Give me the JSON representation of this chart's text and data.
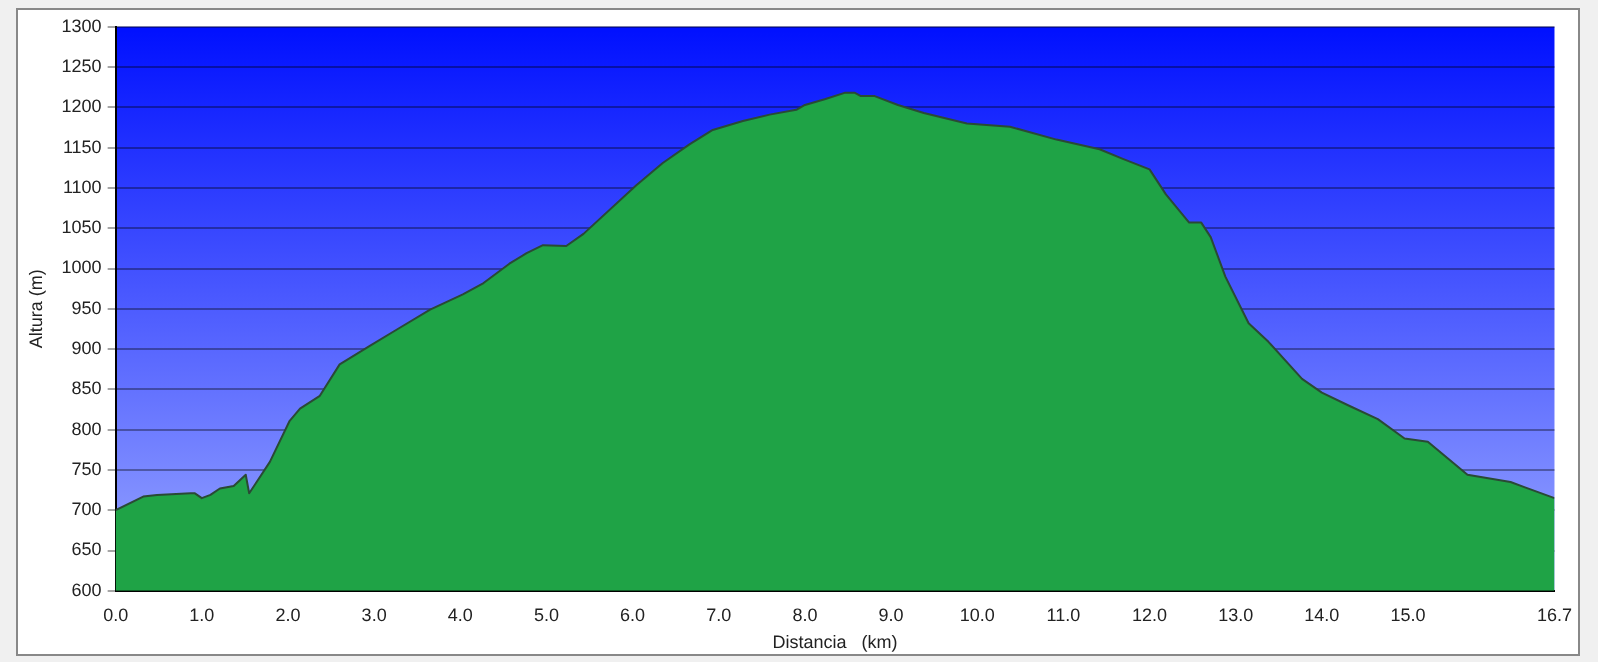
{
  "chart_data": {
    "type": "area",
    "xlabel": "Distancia   (km)",
    "ylabel": "Altura (m)",
    "x": [
      0,
      0.32,
      0.48,
      0.87,
      0.92,
      1.0,
      1.1,
      1.21,
      1.37,
      1.51,
      1.55,
      1.79,
      2.02,
      2.14,
      2.37,
      2.6,
      2.95,
      3.26,
      3.65,
      4.03,
      4.27,
      4.57,
      4.77,
      4.96,
      5.23,
      5.43,
      6.04,
      6.35,
      6.66,
      6.93,
      7.28,
      7.59,
      7.9,
      8.0,
      8.23,
      8.46,
      8.58,
      8.65,
      8.81,
      9.08,
      9.38,
      9.88,
      10.38,
      10.92,
      11.42,
      11.69,
      12.0,
      12.19,
      12.46,
      12.6,
      12.71,
      12.88,
      13.15,
      13.38,
      13.77,
      14.0,
      14.31,
      14.65,
      14.96,
      15.23,
      15.69,
      16.19,
      16.7
    ],
    "series": [
      {
        "color": "#1fa346",
        "values": [
          700,
          717,
          719,
          721,
          721,
          715,
          719,
          727,
          730,
          744,
          721,
          760,
          811,
          826,
          842,
          881,
          904,
          924,
          949,
          968,
          982,
          1006,
          1019,
          1029,
          1028,
          1043,
          1103,
          1131,
          1154,
          1172,
          1183,
          1191,
          1197,
          1203,
          1210,
          1218,
          1218,
          1214,
          1214,
          1203,
          1193,
          1180,
          1176,
          1160,
          1148,
          1136,
          1123,
          1092,
          1057,
          1057,
          1039,
          990,
          932,
          909,
          863,
          846,
          830,
          813,
          789,
          785,
          744,
          735,
          715
        ]
      }
    ],
    "xlim": [
      0,
      16.7
    ],
    "ylim": [
      600,
      1300
    ],
    "xticks": [
      {
        "value": 0,
        "label": "0.0"
      },
      {
        "value": 1,
        "label": "1.0"
      },
      {
        "value": 2,
        "label": "2.0"
      },
      {
        "value": 3,
        "label": "3.0"
      },
      {
        "value": 4,
        "label": "4.0"
      },
      {
        "value": 5,
        "label": "5.0"
      },
      {
        "value": 6,
        "label": "6.0"
      },
      {
        "value": 7,
        "label": "7.0"
      },
      {
        "value": 8,
        "label": "8.0"
      },
      {
        "value": 9,
        "label": "9.0"
      },
      {
        "value": 10,
        "label": "10.0"
      },
      {
        "value": 11,
        "label": "11.0"
      },
      {
        "value": 12,
        "label": "12.0"
      },
      {
        "value": 13,
        "label": "13.0"
      },
      {
        "value": 14,
        "label": "14.0"
      },
      {
        "value": 15,
        "label": "15.0"
      },
      16.7
    ],
    "yticks": [
      600,
      650,
      700,
      750,
      800,
      850,
      900,
      950,
      1000,
      1050,
      1100,
      1150,
      1200,
      1250,
      1300
    ],
    "grid": "y",
    "legend": false,
    "marker": "none",
    "line_style": "solid"
  }
}
